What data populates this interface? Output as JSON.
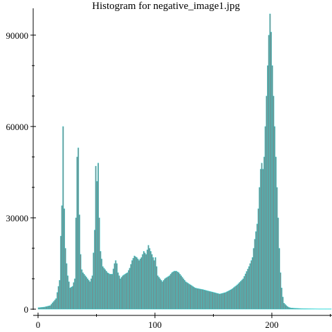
{
  "chart_data": {
    "type": "bar",
    "title": "Histogram for negative_image1.jpg",
    "xlabel": "",
    "ylabel": "",
    "xlim": [
      0,
      250
    ],
    "ylim": [
      0,
      97000
    ],
    "xticks": [
      0,
      100,
      200
    ],
    "xtick_labels": [
      "0",
      "100",
      "200"
    ],
    "yticks": [
      0,
      30000,
      60000,
      90000
    ],
    "ytick_labels": [
      "0",
      "30000",
      "60000",
      "90000"
    ],
    "grid": false,
    "legend": "none",
    "colors": {
      "bar_fill": "#808080",
      "bar_edge": "#19e0e0",
      "axis": "#000000"
    },
    "x": [
      0,
      5,
      10,
      15,
      18,
      19,
      20,
      21,
      22,
      23,
      24,
      25,
      27,
      29,
      31,
      33,
      34,
      35,
      36,
      37,
      38,
      40,
      42,
      44,
      46,
      48,
      49,
      50,
      51,
      52,
      53,
      55,
      57,
      59,
      61,
      63,
      65,
      66,
      67,
      68,
      70,
      72,
      74,
      76,
      78,
      80,
      82,
      84,
      86,
      88,
      90,
      92,
      94,
      96,
      98,
      99,
      100,
      102,
      104,
      106,
      108,
      110,
      112,
      114,
      116,
      118,
      120,
      122,
      124,
      126,
      128,
      130,
      132,
      134,
      136,
      140,
      145,
      150,
      155,
      160,
      165,
      170,
      175,
      180,
      183,
      185,
      187,
      188,
      189,
      190,
      191,
      192,
      193,
      194,
      195,
      196,
      197,
      198,
      199,
      200,
      201,
      202,
      203,
      204,
      205,
      206,
      207,
      208,
      209,
      210,
      212,
      214,
      216,
      218,
      220,
      222,
      225,
      230,
      240,
      250
    ],
    "values": [
      500,
      700,
      1200,
      3500,
      9500,
      24000,
      34000,
      60000,
      33000,
      20000,
      15000,
      11000,
      7000,
      7500,
      10000,
      50000,
      53000,
      31000,
      18000,
      13000,
      12000,
      11000,
      10000,
      9000,
      11000,
      26000,
      47000,
      42000,
      48000,
      30000,
      19000,
      14000,
      13000,
      12000,
      11500,
      11500,
      15000,
      16000,
      15000,
      12000,
      10000,
      11000,
      11500,
      12000,
      13500,
      16000,
      17500,
      17000,
      16000,
      17000,
      19000,
      18000,
      21000,
      19000,
      17000,
      16000,
      17000,
      11000,
      10000,
      9000,
      10000,
      10500,
      11000,
      12000,
      12500,
      12500,
      12000,
      11000,
      10000,
      9000,
      8500,
      8000,
      7500,
      7000,
      6800,
      6500,
      6000,
      5500,
      5000,
      5500,
      6500,
      8000,
      10000,
      14000,
      17000,
      23000,
      28000,
      33000,
      40000,
      46000,
      48000,
      46000,
      50000,
      60000,
      70000,
      80000,
      90000,
      97000,
      91000,
      80000,
      70000,
      60000,
      50000,
      40000,
      30000,
      20000,
      12000,
      7000,
      4000,
      2000,
      1200,
      600,
      400,
      350,
      300,
      250,
      200,
      150,
      100,
      100
    ]
  }
}
